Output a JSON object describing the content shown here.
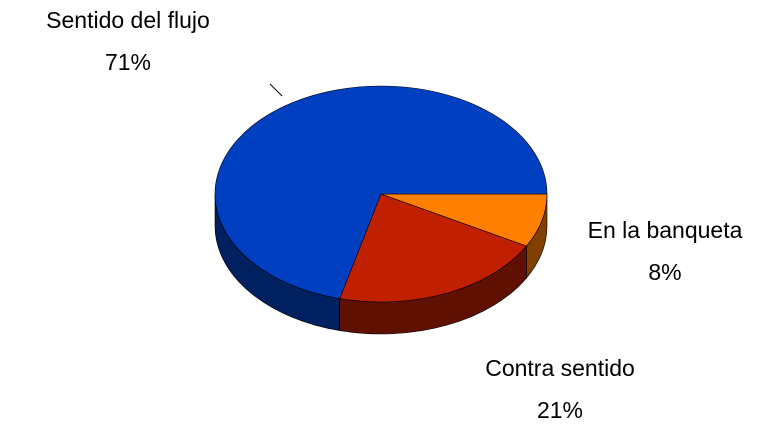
{
  "chart_data": {
    "type": "pie",
    "categories": [
      "En la banqueta",
      "Contra sentido",
      "Sentido del flujo"
    ],
    "values": [
      8,
      21,
      71
    ],
    "value_labels": [
      "8%",
      "21%",
      "71%"
    ],
    "colors": [
      "#ff8000",
      "#c02000",
      "#0040c0"
    ]
  }
}
